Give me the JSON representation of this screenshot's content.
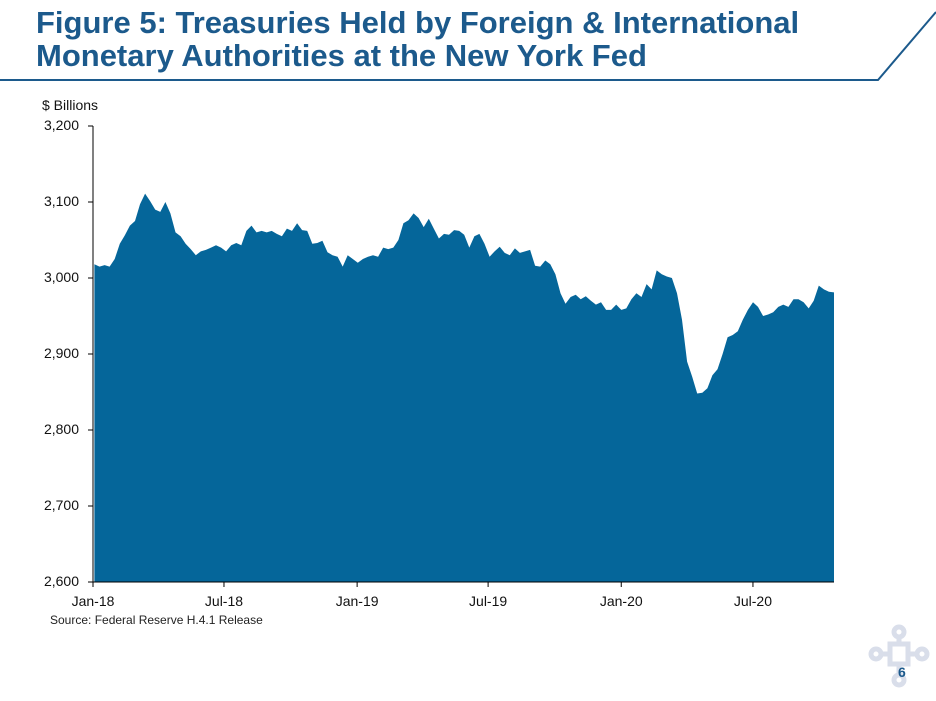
{
  "slide": {
    "title_line1": "Figure 5: Treasuries Held by Foreign & International",
    "title_line2": "Monetary Authorities at the New York Fed",
    "source": "Source: Federal Reserve H.4.1 Release",
    "page_number": "6"
  },
  "colors": {
    "title": "#1c5a8c",
    "fill": "#05669a",
    "rule": "#1c5a8c"
  },
  "chart_data": {
    "type": "area",
    "title": "",
    "ylabel": "$ Billions",
    "xlabel": "",
    "ylim": [
      2600,
      3200
    ],
    "y_ticks": [
      2600,
      2700,
      2800,
      2900,
      3000,
      3100,
      3200
    ],
    "y_tick_labels": [
      "2,600",
      "2,700",
      "2,800",
      "2,900",
      "3,000",
      "3,100",
      "3,200"
    ],
    "x_tick_labels": [
      "Jan-18",
      "Jul-18",
      "Jan-19",
      "Jul-19",
      "Jan-20",
      "Jul-20"
    ],
    "x_tick_dates": [
      "2018-01-01",
      "2018-07-01",
      "2019-01-01",
      "2019-07-01",
      "2020-01-01",
      "2020-07-01"
    ],
    "xlim": [
      "2018-01-01",
      "2020-10-21"
    ],
    "grid": false,
    "series": [
      {
        "points": [
          [
            "2018-01-03",
            3018
          ],
          [
            "2018-01-10",
            3015
          ],
          [
            "2018-01-17",
            3017
          ],
          [
            "2018-01-24",
            3015
          ],
          [
            "2018-01-31",
            3025
          ],
          [
            "2018-02-07",
            3045
          ],
          [
            "2018-02-14",
            3056
          ],
          [
            "2018-02-21",
            3069
          ],
          [
            "2018-02-28",
            3075
          ],
          [
            "2018-03-07",
            3097
          ],
          [
            "2018-03-14",
            3111
          ],
          [
            "2018-03-21",
            3101
          ],
          [
            "2018-03-28",
            3090
          ],
          [
            "2018-04-04",
            3087
          ],
          [
            "2018-04-11",
            3100
          ],
          [
            "2018-04-18",
            3085
          ],
          [
            "2018-04-25",
            3060
          ],
          [
            "2018-05-02",
            3055
          ],
          [
            "2018-05-09",
            3045
          ],
          [
            "2018-05-16",
            3038
          ],
          [
            "2018-05-23",
            3030
          ],
          [
            "2018-05-30",
            3035
          ],
          [
            "2018-06-06",
            3037
          ],
          [
            "2018-06-13",
            3040
          ],
          [
            "2018-06-20",
            3043
          ],
          [
            "2018-06-27",
            3040
          ],
          [
            "2018-07-04",
            3035
          ],
          [
            "2018-07-11",
            3043
          ],
          [
            "2018-07-18",
            3046
          ],
          [
            "2018-07-25",
            3043
          ],
          [
            "2018-08-01",
            3062
          ],
          [
            "2018-08-08",
            3069
          ],
          [
            "2018-08-15",
            3060
          ],
          [
            "2018-08-22",
            3062
          ],
          [
            "2018-08-29",
            3060
          ],
          [
            "2018-09-05",
            3062
          ],
          [
            "2018-09-12",
            3058
          ],
          [
            "2018-09-19",
            3055
          ],
          [
            "2018-09-26",
            3065
          ],
          [
            "2018-10-03",
            3062
          ],
          [
            "2018-10-10",
            3072
          ],
          [
            "2018-10-17",
            3063
          ],
          [
            "2018-10-24",
            3062
          ],
          [
            "2018-10-31",
            3045
          ],
          [
            "2018-11-07",
            3046
          ],
          [
            "2018-11-14",
            3049
          ],
          [
            "2018-11-21",
            3034
          ],
          [
            "2018-11-28",
            3030
          ],
          [
            "2018-12-05",
            3028
          ],
          [
            "2018-12-12",
            3015
          ],
          [
            "2018-12-19",
            3030
          ],
          [
            "2018-12-26",
            3025
          ],
          [
            "2019-01-02",
            3020
          ],
          [
            "2019-01-09",
            3025
          ],
          [
            "2019-01-16",
            3028
          ],
          [
            "2019-01-23",
            3030
          ],
          [
            "2019-01-30",
            3028
          ],
          [
            "2019-02-06",
            3040
          ],
          [
            "2019-02-13",
            3038
          ],
          [
            "2019-02-20",
            3040
          ],
          [
            "2019-02-27",
            3050
          ],
          [
            "2019-03-06",
            3072
          ],
          [
            "2019-03-13",
            3076
          ],
          [
            "2019-03-20",
            3085
          ],
          [
            "2019-03-27",
            3079
          ],
          [
            "2019-04-03",
            3067
          ],
          [
            "2019-04-10",
            3078
          ],
          [
            "2019-04-17",
            3065
          ],
          [
            "2019-04-24",
            3052
          ],
          [
            "2019-05-01",
            3058
          ],
          [
            "2019-05-08",
            3057
          ],
          [
            "2019-05-15",
            3063
          ],
          [
            "2019-05-22",
            3062
          ],
          [
            "2019-05-29",
            3057
          ],
          [
            "2019-06-05",
            3040
          ],
          [
            "2019-06-12",
            3055
          ],
          [
            "2019-06-19",
            3058
          ],
          [
            "2019-06-26",
            3045
          ],
          [
            "2019-07-03",
            3028
          ],
          [
            "2019-07-10",
            3035
          ],
          [
            "2019-07-17",
            3041
          ],
          [
            "2019-07-24",
            3033
          ],
          [
            "2019-07-31",
            3030
          ],
          [
            "2019-08-07",
            3039
          ],
          [
            "2019-08-14",
            3033
          ],
          [
            "2019-08-21",
            3035
          ],
          [
            "2019-08-28",
            3037
          ],
          [
            "2019-09-04",
            3016
          ],
          [
            "2019-09-11",
            3015
          ],
          [
            "2019-09-18",
            3023
          ],
          [
            "2019-09-25",
            3018
          ],
          [
            "2019-10-02",
            3005
          ],
          [
            "2019-10-09",
            2980
          ],
          [
            "2019-10-16",
            2966
          ],
          [
            "2019-10-23",
            2975
          ],
          [
            "2019-10-30",
            2978
          ],
          [
            "2019-11-06",
            2972
          ],
          [
            "2019-11-13",
            2976
          ],
          [
            "2019-11-20",
            2970
          ],
          [
            "2019-11-27",
            2965
          ],
          [
            "2019-12-04",
            2968
          ],
          [
            "2019-12-11",
            2958
          ],
          [
            "2019-12-18",
            2958
          ],
          [
            "2019-12-25",
            2965
          ],
          [
            "2020-01-01",
            2958
          ],
          [
            "2020-01-08",
            2960
          ],
          [
            "2020-01-15",
            2972
          ],
          [
            "2020-01-22",
            2980
          ],
          [
            "2020-01-29",
            2975
          ],
          [
            "2020-02-05",
            2992
          ],
          [
            "2020-02-12",
            2985
          ],
          [
            "2020-02-19",
            3010
          ],
          [
            "2020-02-26",
            3005
          ],
          [
            "2020-03-04",
            3002
          ],
          [
            "2020-03-11",
            3000
          ],
          [
            "2020-03-18",
            2980
          ],
          [
            "2020-03-25",
            2945
          ],
          [
            "2020-04-01",
            2890
          ],
          [
            "2020-04-08",
            2870
          ],
          [
            "2020-04-15",
            2848
          ],
          [
            "2020-04-22",
            2849
          ],
          [
            "2020-04-29",
            2855
          ],
          [
            "2020-05-06",
            2872
          ],
          [
            "2020-05-13",
            2880
          ],
          [
            "2020-05-20",
            2900
          ],
          [
            "2020-05-27",
            2922
          ],
          [
            "2020-06-03",
            2925
          ],
          [
            "2020-06-10",
            2930
          ],
          [
            "2020-06-17",
            2945
          ],
          [
            "2020-06-24",
            2958
          ],
          [
            "2020-07-01",
            2968
          ],
          [
            "2020-07-08",
            2962
          ],
          [
            "2020-07-15",
            2950
          ],
          [
            "2020-07-22",
            2952
          ],
          [
            "2020-07-29",
            2955
          ],
          [
            "2020-08-05",
            2962
          ],
          [
            "2020-08-12",
            2965
          ],
          [
            "2020-08-19",
            2962
          ],
          [
            "2020-08-26",
            2972
          ],
          [
            "2020-09-02",
            2972
          ],
          [
            "2020-09-09",
            2968
          ],
          [
            "2020-09-16",
            2960
          ],
          [
            "2020-09-23",
            2970
          ],
          [
            "2020-09-30",
            2990
          ],
          [
            "2020-10-07",
            2985
          ],
          [
            "2020-10-14",
            2982
          ],
          [
            "2020-10-21",
            2981
          ]
        ]
      }
    ]
  }
}
